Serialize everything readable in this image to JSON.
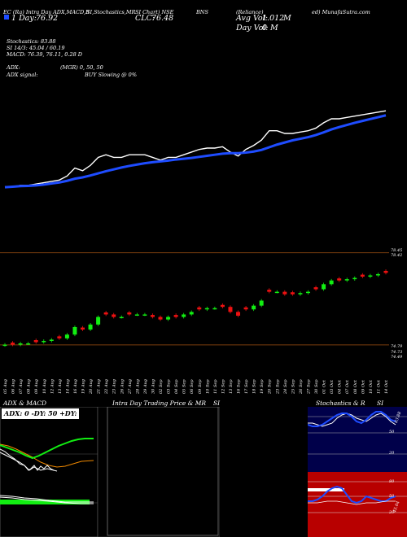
{
  "header": {
    "line1": [
      "EC (Ra) Intra Day ADX,MACD,B",
      "SI,Stochastics,MR",
      "SI Chart) NSE",
      "BNS",
      "(Reliance)",
      "ed) MunafaSutra.com"
    ],
    "day_label": "1 Day:",
    "day_value": "76.92",
    "clc_label": "CLC:",
    "clc_value": "76.48",
    "avg_vol_label": "Avg Vol:",
    "avg_vol_value": "1.012",
    "avg_vol_unit": "M",
    "day_vol_label": "Day Vol:",
    "day_vol_value": "0",
    "day_vol_unit": "M"
  },
  "info": {
    "stochastics": "Stochastics: 83.88",
    "rsi": "SI 14/3: 45.04 / 60.19",
    "macd": "MACD: 76.39, 76.11, 0.28  D",
    "adx": "ADX:",
    "adx_mid": "(MGR) 0, 50, 50",
    "adx_signal": "ADX signal:",
    "buy": "BUY Slowing @ 0%"
  },
  "price_axis": {
    "top_labels": [
      "78.45",
      "78.42"
    ],
    "bottom_labels": [
      "74.79",
      "74.73",
      "74.49"
    ]
  },
  "colors": {
    "bull": "#12ee12",
    "bear": "#ee1111",
    "ema": "#1e4cff",
    "price": "#ffffff",
    "level": "#7a3e0e",
    "panel_blue": "#00004a",
    "panel_red": "#b80000"
  },
  "chart_data": {
    "type": "candlestick",
    "x": [
      "05 Aug",
      "06 Aug",
      "07 Aug",
      "08 Aug",
      "09 Aug",
      "10 Aug",
      "12 Aug",
      "13 Aug",
      "14 Aug",
      "16 Aug",
      "19 Aug",
      "20 Aug",
      "21 Aug",
      "22 Aug",
      "23 Aug",
      "26 Aug",
      "27 Aug",
      "28 Aug",
      "29 Aug",
      "30 Aug",
      "02 Sep",
      "03 Sep",
      "04 Sep",
      "05 Sep",
      "06 Sep",
      "09 Sep",
      "10 Sep",
      "11 Sep",
      "12 Sep",
      "13 Sep",
      "16 Sep",
      "17 Sep",
      "18 Sep",
      "19 Sep",
      "20 Sep",
      "23 Sep",
      "24 Sep",
      "25 Sep",
      "26 Sep",
      "27 Sep",
      "30 Sep",
      "01 Oct",
      "03 Oct",
      "04 Oct",
      "07 Oct",
      "08 Oct",
      "09 Oct",
      "10 Oct",
      "11 Oct",
      "14 Oct"
    ],
    "close": [
      74.8,
      74.8,
      74.85,
      74.85,
      74.9,
      74.95,
      75.0,
      75.05,
      75.2,
      75.5,
      75.4,
      75.6,
      75.9,
      76.0,
      75.9,
      75.9,
      76.0,
      76.0,
      76.0,
      75.9,
      75.8,
      75.9,
      75.9,
      76.0,
      76.1,
      76.2,
      76.25,
      76.25,
      76.3,
      76.1,
      75.95,
      76.2,
      76.35,
      76.55,
      76.9,
      76.9,
      76.8,
      76.8,
      76.85,
      76.9,
      77.0,
      77.2,
      77.35,
      77.35,
      77.4,
      77.45,
      77.5,
      77.55,
      77.6,
      77.65
    ],
    "ema": [
      74.78,
      74.8,
      74.82,
      74.83,
      74.85,
      74.88,
      74.92,
      74.96,
      75.02,
      75.1,
      75.15,
      75.22,
      75.3,
      75.38,
      75.45,
      75.52,
      75.58,
      75.63,
      75.68,
      75.72,
      75.75,
      75.78,
      75.82,
      75.85,
      75.88,
      75.92,
      75.96,
      76.0,
      76.04,
      76.06,
      76.06,
      76.08,
      76.12,
      76.18,
      76.28,
      76.38,
      76.46,
      76.54,
      76.6,
      76.66,
      76.74,
      76.84,
      76.95,
      77.04,
      77.12,
      77.2,
      77.27,
      77.34,
      77.41,
      77.48
    ],
    "ylim": [
      74.4,
      78.6
    ],
    "levels": [
      78.45,
      74.79
    ]
  },
  "panels": {
    "adx": {
      "title": "ADX  & MACD",
      "label": "ADX: 0   -DY: 50   +DY: 50"
    },
    "mrsi": {
      "title": "Intra  Day Trading Price  & MR",
      "title_right": "SI"
    },
    "stoch": {
      "title": "Stochastics & R",
      "title_right": "SI",
      "upper_labels": [
        "83.88",
        "50",
        "20"
      ],
      "lower_labels": [
        "80",
        "50",
        "20",
        "45.04"
      ]
    }
  }
}
